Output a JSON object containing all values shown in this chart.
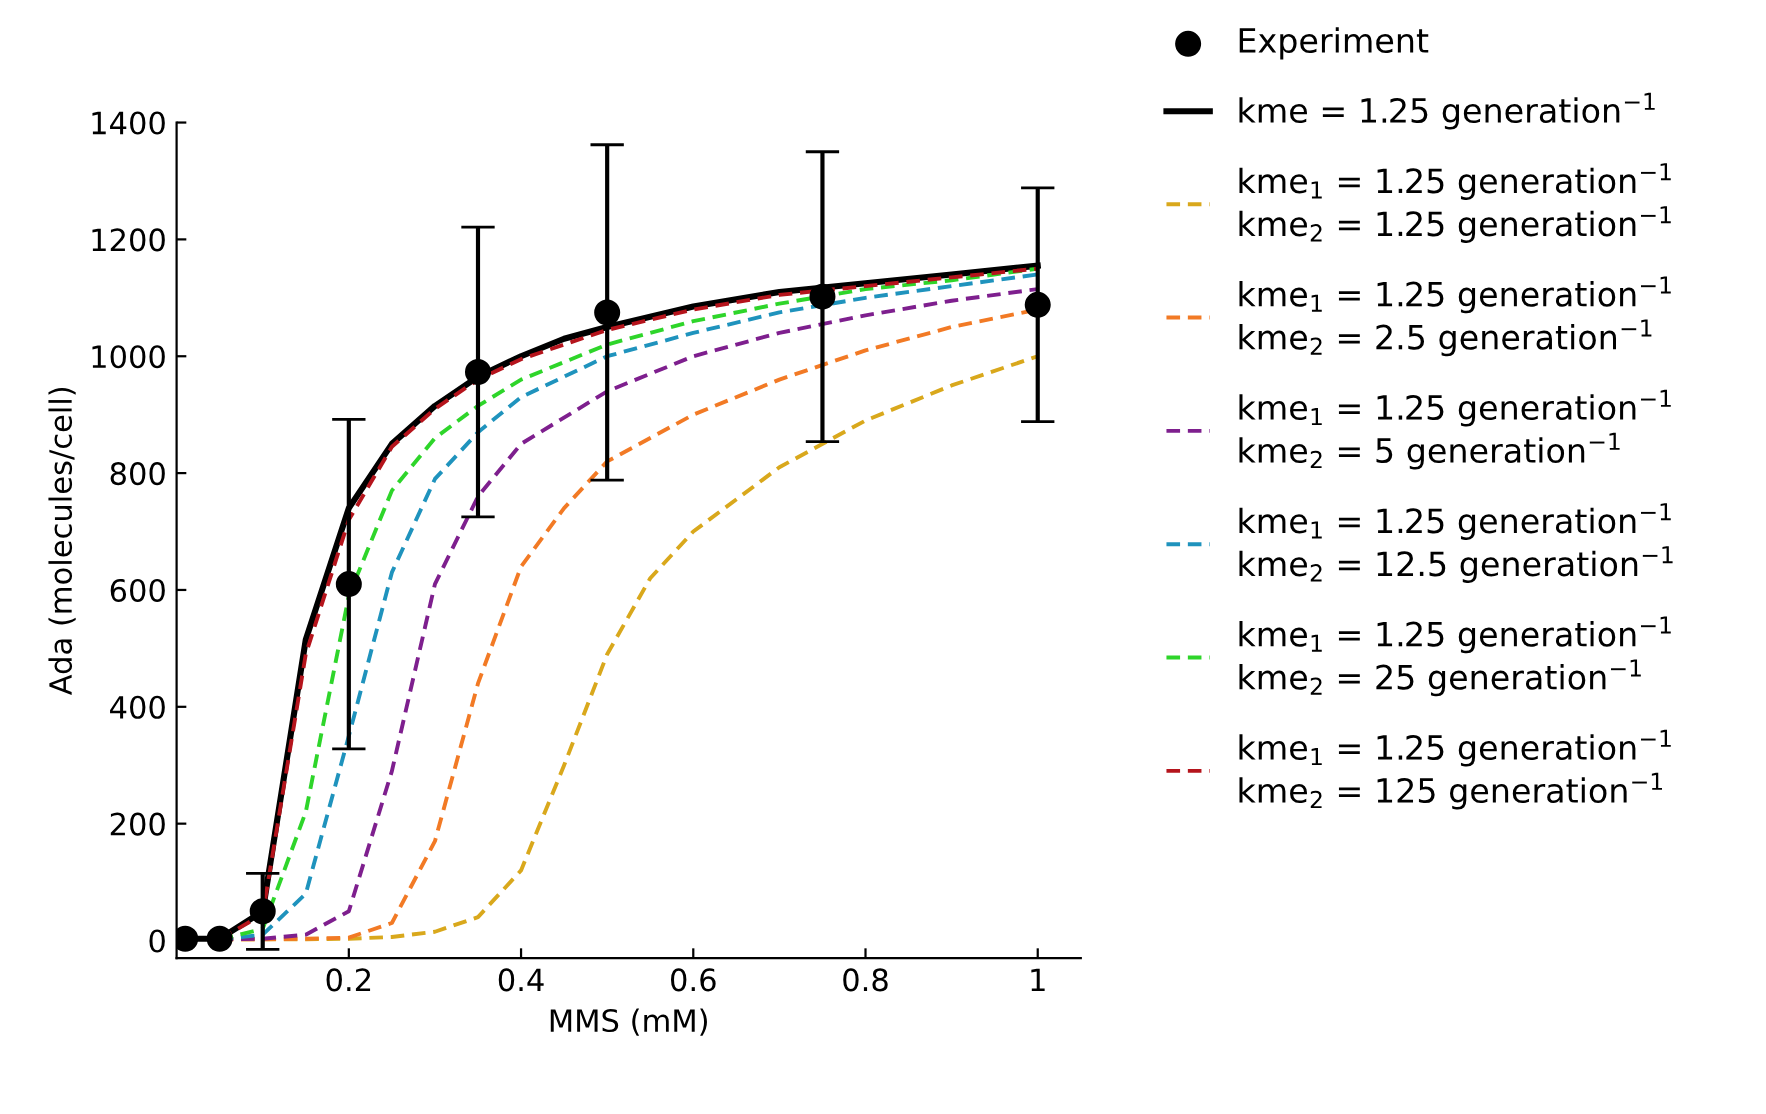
{
  "chart_data": {
    "type": "line",
    "xlabel": "MMS (mM)",
    "ylabel": "Ada (molecules/cell)",
    "xlim": [
      0,
      1.05
    ],
    "ylim": [
      -30,
      1400
    ],
    "xticks": [
      0.2,
      0.4,
      0.6,
      0.8,
      1
    ],
    "yticks": [
      0,
      200,
      400,
      600,
      800,
      1000,
      1200,
      1400
    ],
    "grid": false,
    "legend": "right",
    "series": [
      {
        "name": "Experiment",
        "type": "scatter",
        "marker": "circle",
        "color": "#000000",
        "x": [
          0.01,
          0.05,
          0.1,
          0.2,
          0.35,
          0.5,
          0.75,
          1.0
        ],
        "values": [
          3,
          3,
          50,
          610,
          973,
          1075,
          1102,
          1088
        ],
        "errors": [
          null,
          null,
          65,
          282,
          248,
          287,
          248,
          200
        ]
      },
      {
        "name": "kme = 1.25 generation$^{−1}$",
        "line_style": "solid",
        "color": "#000000",
        "x": [
          0.01,
          0.05,
          0.1,
          0.15,
          0.2,
          0.25,
          0.3,
          0.35,
          0.4,
          0.45,
          0.5,
          0.6,
          0.7,
          0.8,
          0.9,
          1.0
        ],
        "values": [
          3,
          3,
          50,
          515,
          740,
          850,
          915,
          965,
          1000,
          1030,
          1050,
          1085,
          1110,
          1125,
          1140,
          1155
        ]
      },
      {
        "name": "kme$_{1}$ = 1.25 generation$^{−1}$\nkme$_{2}$ = 1.25 generation$^{−1}$",
        "line_style": "dashed",
        "color": "#d9a81c",
        "x": [
          0.05,
          0.1,
          0.15,
          0.2,
          0.25,
          0.3,
          0.35,
          0.4,
          0.45,
          0.5,
          0.55,
          0.6,
          0.7,
          0.8,
          0.9,
          1.0
        ],
        "values": [
          2,
          2,
          2,
          3,
          6,
          15,
          40,
          120,
          300,
          490,
          620,
          700,
          810,
          890,
          950,
          1000
        ]
      },
      {
        "name": "kme$_{1}$ = 1.25 generation$^{−1}$\nkme$_{2}$ = 2.5 generation$^{−1}$",
        "line_style": "dashed",
        "color": "#f27a25",
        "x": [
          0.05,
          0.1,
          0.15,
          0.2,
          0.25,
          0.3,
          0.35,
          0.4,
          0.45,
          0.5,
          0.6,
          0.7,
          0.8,
          0.9,
          1.0
        ],
        "values": [
          2,
          2,
          3,
          5,
          30,
          170,
          440,
          640,
          740,
          820,
          900,
          960,
          1010,
          1050,
          1080
        ]
      },
      {
        "name": "kme$_{1}$ = 1.25 generation$^{−1}$\nkme$_{2}$ = 5 generation$^{−1}$",
        "line_style": "dashed",
        "color": "#7e1f8e",
        "x": [
          0.05,
          0.1,
          0.15,
          0.2,
          0.25,
          0.3,
          0.35,
          0.4,
          0.5,
          0.6,
          0.7,
          0.8,
          0.9,
          1.0
        ],
        "values": [
          2,
          3,
          10,
          50,
          290,
          610,
          760,
          850,
          940,
          1000,
          1040,
          1070,
          1095,
          1115
        ]
      },
      {
        "name": "kme$_{1}$ = 1.25 generation$^{−1}$\nkme$_{2}$ = 12.5 generation$^{−1}$",
        "line_style": "dashed",
        "color": "#1f93bd",
        "x": [
          0.05,
          0.1,
          0.15,
          0.2,
          0.25,
          0.3,
          0.35,
          0.4,
          0.5,
          0.6,
          0.7,
          0.8,
          0.9,
          1.0
        ],
        "values": [
          2,
          10,
          80,
          350,
          630,
          790,
          870,
          930,
          1000,
          1040,
          1075,
          1100,
          1120,
          1140
        ]
      },
      {
        "name": "kme$_{1}$ = 1.25 generation$^{−1}$\nkme$_{2}$ = 25 generation$^{−1}$",
        "line_style": "dashed",
        "color": "#2ed52a",
        "x": [
          0.05,
          0.1,
          0.15,
          0.2,
          0.25,
          0.3,
          0.35,
          0.4,
          0.5,
          0.6,
          0.7,
          0.8,
          0.9,
          1.0
        ],
        "values": [
          2,
          20,
          220,
          590,
          770,
          860,
          915,
          960,
          1020,
          1060,
          1090,
          1115,
          1130,
          1150
        ]
      },
      {
        "name": "kme$_{1}$ = 1.25 generation$^{−1}$\nkme$_{2}$ = 125 generation$^{−1}$",
        "line_style": "dashed",
        "color": "#b5141c",
        "x": [
          0.05,
          0.1,
          0.15,
          0.2,
          0.25,
          0.3,
          0.35,
          0.4,
          0.5,
          0.6,
          0.7,
          0.8,
          0.9,
          1.0
        ],
        "values": [
          2,
          45,
          490,
          720,
          845,
          910,
          960,
          995,
          1045,
          1080,
          1105,
          1120,
          1135,
          1150
        ]
      }
    ]
  }
}
